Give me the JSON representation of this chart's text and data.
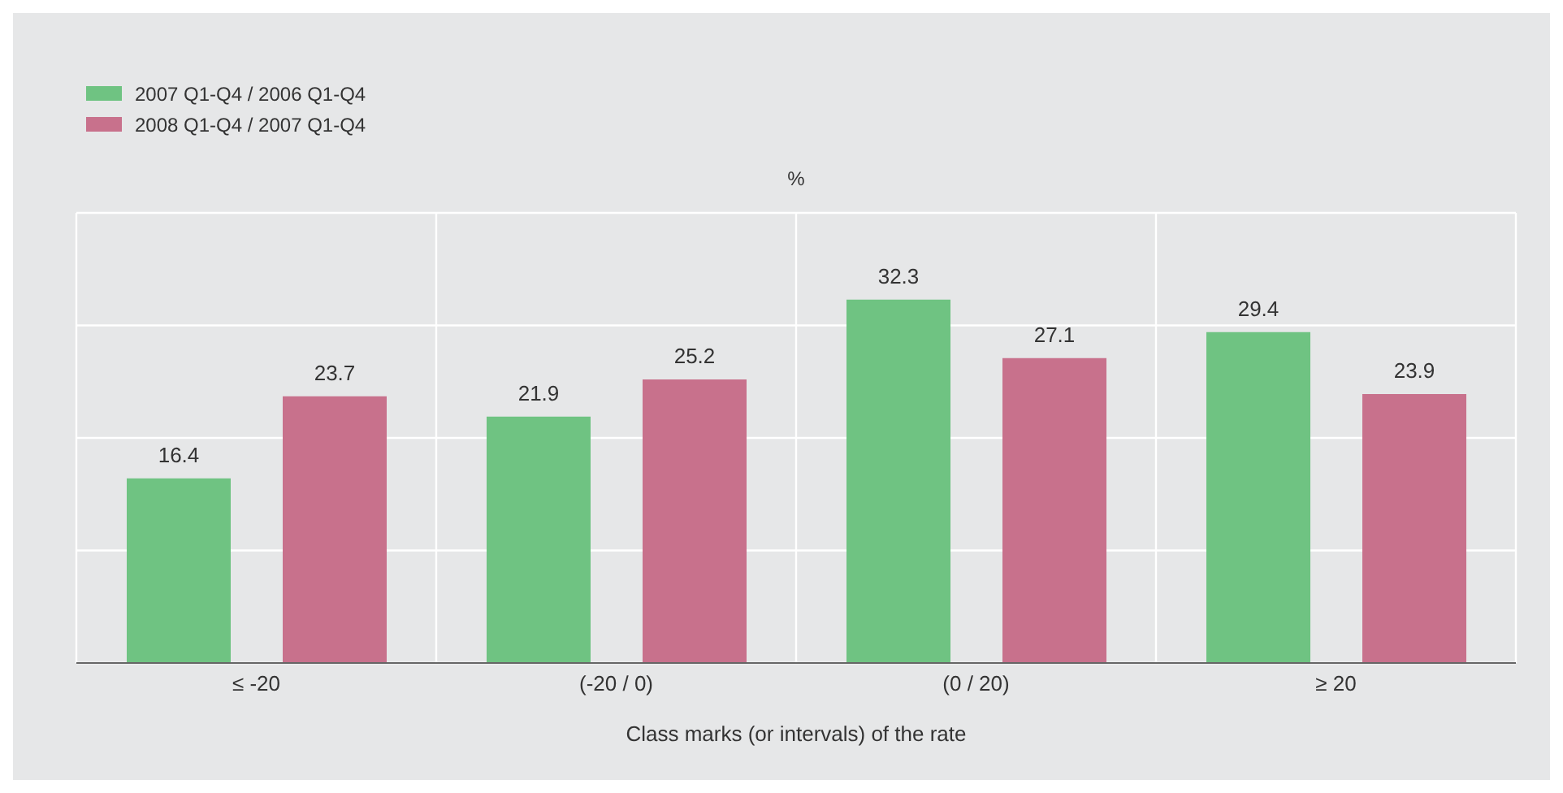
{
  "chart_data": {
    "type": "bar",
    "categories": [
      "≤ -20",
      "(-20 / 0)",
      "(0 / 20)",
      "≥ 20"
    ],
    "series": [
      {
        "name": "2007 Q1-Q4 / 2006 Q1-Q4",
        "color": "#6fc382",
        "values": [
          16.4,
          21.9,
          32.3,
          29.4
        ]
      },
      {
        "name": "2008 Q1-Q4 / 2007 Q1-Q4",
        "color": "#c8718c",
        "values": [
          23.7,
          25.2,
          27.1,
          23.9
        ]
      }
    ],
    "xlabel": "Class marks (or intervals) of the rate",
    "ylabel": "%",
    "ylim": [
      0,
      40
    ],
    "yticks": [
      {
        "value": 0,
        "label": null
      },
      {
        "value": 10,
        "label": null
      },
      {
        "value": 20,
        "label": null
      },
      {
        "value": 30,
        "label": null
      },
      {
        "value": 40,
        "label": null
      }
    ],
    "grid": true,
    "legend": "top left",
    "tick_labels": "x",
    "data_labels": true
  }
}
